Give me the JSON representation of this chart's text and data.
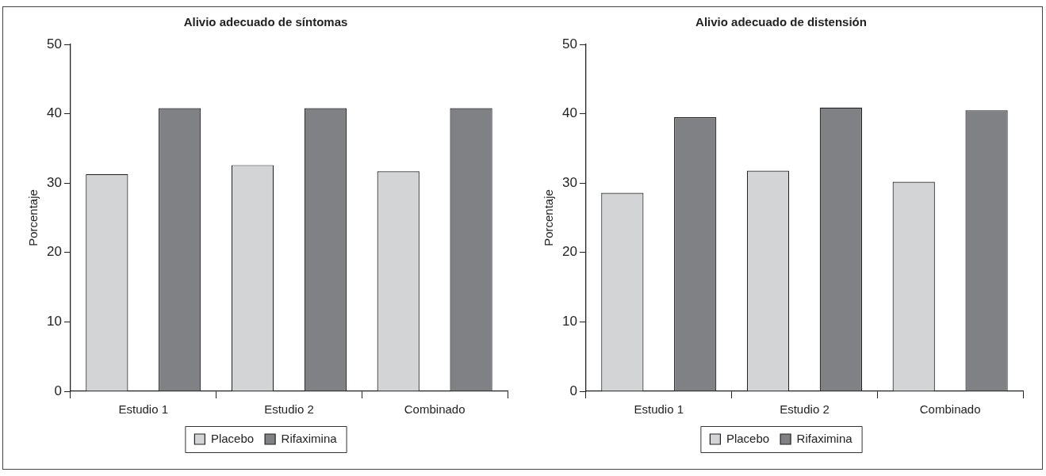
{
  "chart_data": [
    {
      "type": "bar",
      "title": "Alivio adecuado de síntomas",
      "ylabel": "Porcentaje",
      "categories": [
        "Estudio 1",
        "Estudio 2",
        "Combinado"
      ],
      "series": [
        {
          "name": "Placebo",
          "color": "#d3d4d6",
          "values": [
            31.3,
            32.6,
            31.7
          ]
        },
        {
          "name": "Rifaximina",
          "color": "#808185",
          "values": [
            40.8,
            40.8,
            40.8
          ]
        }
      ],
      "ylim": [
        0,
        50
      ],
      "yticks": [
        0,
        10,
        20,
        30,
        40,
        50
      ],
      "grid": false,
      "legend": "bottom"
    },
    {
      "type": "bar",
      "title": "Alivio adecuado de distensión",
      "ylabel": "Porcentaje",
      "categories": [
        "Estudio 1",
        "Estudio 2",
        "Combinado"
      ],
      "series": [
        {
          "name": "Placebo",
          "color": "#d3d4d6",
          "values": [
            28.6,
            31.8,
            30.2
          ]
        },
        {
          "name": "Rifaximina",
          "color": "#808185",
          "values": [
            39.5,
            40.9,
            40.5
          ]
        }
      ],
      "ylim": [
        0,
        50
      ],
      "yticks": [
        0,
        10,
        20,
        30,
        40,
        50
      ],
      "grid": false,
      "legend": "bottom"
    }
  ]
}
